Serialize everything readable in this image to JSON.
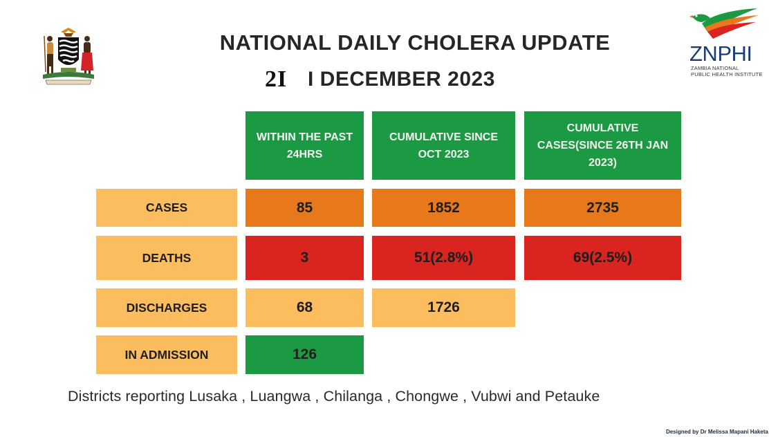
{
  "header": {
    "title": "NATIONAL  DAILY CHOLERA UPDATE",
    "date_day": "2I",
    "date_rest": "I DECEMBER 2023"
  },
  "logo": {
    "name": "ZNPHI",
    "sub_line1": "ZAMBIA NATIONAL",
    "sub_line2": "PUBLIC HEALTH INSTITUTE"
  },
  "table": {
    "columns": [
      "WITHIN THE PAST 24HRS",
      "CUMULATIVE SINCE OCT 2023",
      "CUMULATIVE CASES(SINCE 26TH JAN 2023)"
    ],
    "rows": [
      {
        "label": "CASES",
        "values": [
          "85",
          "1852",
          "2735"
        ]
      },
      {
        "label": "DEATHS",
        "values": [
          "3",
          "51(2.8%)",
          "69(2.5%)"
        ]
      },
      {
        "label": "DISCHARGES",
        "values": [
          "68",
          "1726"
        ]
      },
      {
        "label": "IN ADMISSION",
        "values": [
          "126"
        ]
      }
    ]
  },
  "footer": {
    "districts": "Districts reporting Lusaka , Luangwa , Chilanga , Chongwe , Vubwi and Petauke",
    "credit": "Designed by Dr Melissa Mapani Haketa"
  },
  "colors": {
    "header_green": "#1c9a43",
    "label_amber": "#fbbd5d",
    "cases_orange": "#e7791a",
    "deaths_red": "#d9241f",
    "logo_blue": "#1b3d73"
  }
}
